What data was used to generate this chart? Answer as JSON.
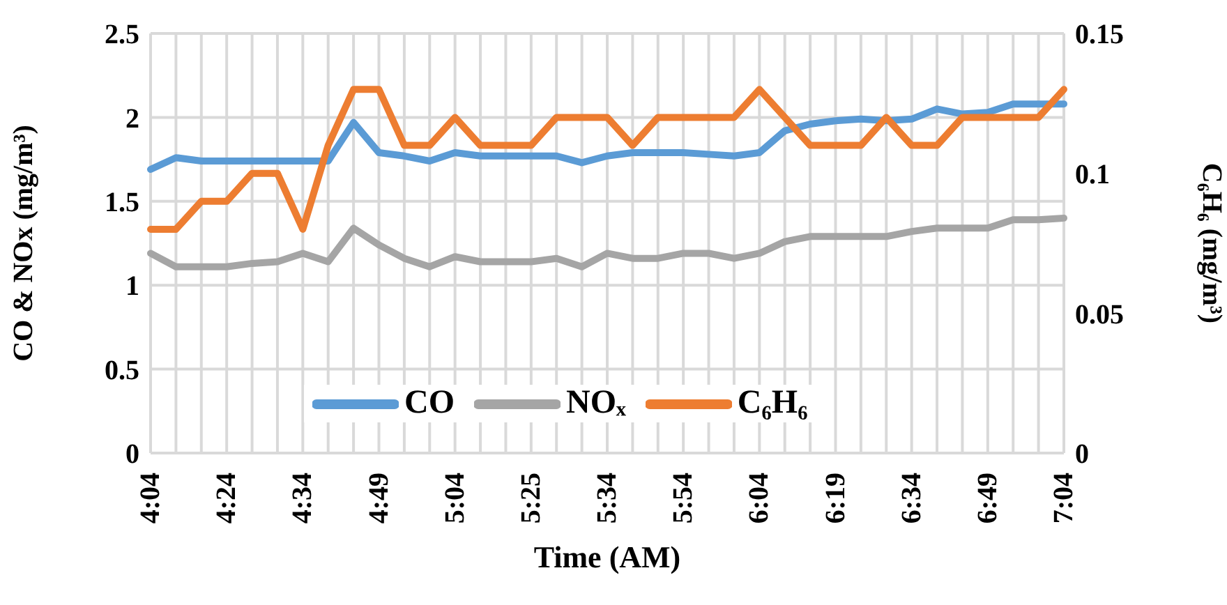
{
  "chart_data": {
    "type": "line",
    "xlabel": "Time (AM)",
    "ylabel": "CO & NOx (mg/m³)",
    "y2label": "C₆H₆ (mg/m³)",
    "categories": [
      "4:04",
      null,
      null,
      "4:24",
      null,
      null,
      "4:34",
      null,
      null,
      "4:49",
      null,
      null,
      "5:04",
      null,
      null,
      "5:25",
      null,
      null,
      "5:34",
      null,
      null,
      "5:54",
      null,
      null,
      "6:04",
      null,
      null,
      "6:19",
      null,
      null,
      "6:34",
      null,
      null,
      "6:49",
      null,
      null,
      "7:04"
    ],
    "series": [
      {
        "name": "CO",
        "color": "#5b9bd5",
        "values": [
          1.69,
          1.76,
          1.74,
          1.74,
          1.74,
          1.74,
          1.74,
          1.74,
          1.97,
          1.79,
          1.77,
          1.74,
          1.79,
          1.77,
          1.77,
          1.77,
          1.77,
          1.73,
          1.77,
          1.79,
          1.79,
          1.79,
          1.78,
          1.77,
          1.79,
          1.92,
          1.96,
          1.98,
          1.99,
          1.98,
          1.99,
          2.05,
          2.02,
          2.03,
          2.08,
          2.08,
          2.08
        ]
      },
      {
        "name": "NOₓ",
        "color": "#a5a5a5",
        "values": [
          1.19,
          1.11,
          1.11,
          1.11,
          1.13,
          1.14,
          1.19,
          1.14,
          1.34,
          1.24,
          1.16,
          1.11,
          1.17,
          1.14,
          1.14,
          1.14,
          1.16,
          1.11,
          1.19,
          1.16,
          1.16,
          1.19,
          1.19,
          1.16,
          1.19,
          1.26,
          1.29,
          1.29,
          1.29,
          1.29,
          1.32,
          1.34,
          1.34,
          1.34,
          1.39,
          1.39,
          1.4
        ]
      },
      {
        "name": "C₆H₆",
        "color": "#ed7d31",
        "axis": "y2",
        "values": [
          0.08,
          0.08,
          0.09,
          0.09,
          0.1,
          0.1,
          0.08,
          0.11,
          0.13,
          0.13,
          0.11,
          0.11,
          0.12,
          0.11,
          0.11,
          0.11,
          0.12,
          0.12,
          0.12,
          0.11,
          0.12,
          0.12,
          0.12,
          0.12,
          0.13,
          0.12,
          0.11,
          0.11,
          0.11,
          0.12,
          0.11,
          0.11,
          0.12,
          0.12,
          0.12,
          0.12,
          0.13
        ]
      }
    ],
    "ylim": [
      0,
      2.5
    ],
    "yticks": [
      0,
      0.5,
      1,
      1.5,
      2,
      2.5
    ],
    "y2lim": [
      0,
      0.15
    ],
    "y2ticks": [
      0,
      0.05,
      0.1,
      0.15
    ],
    "grid": true,
    "legend": "bottom"
  }
}
